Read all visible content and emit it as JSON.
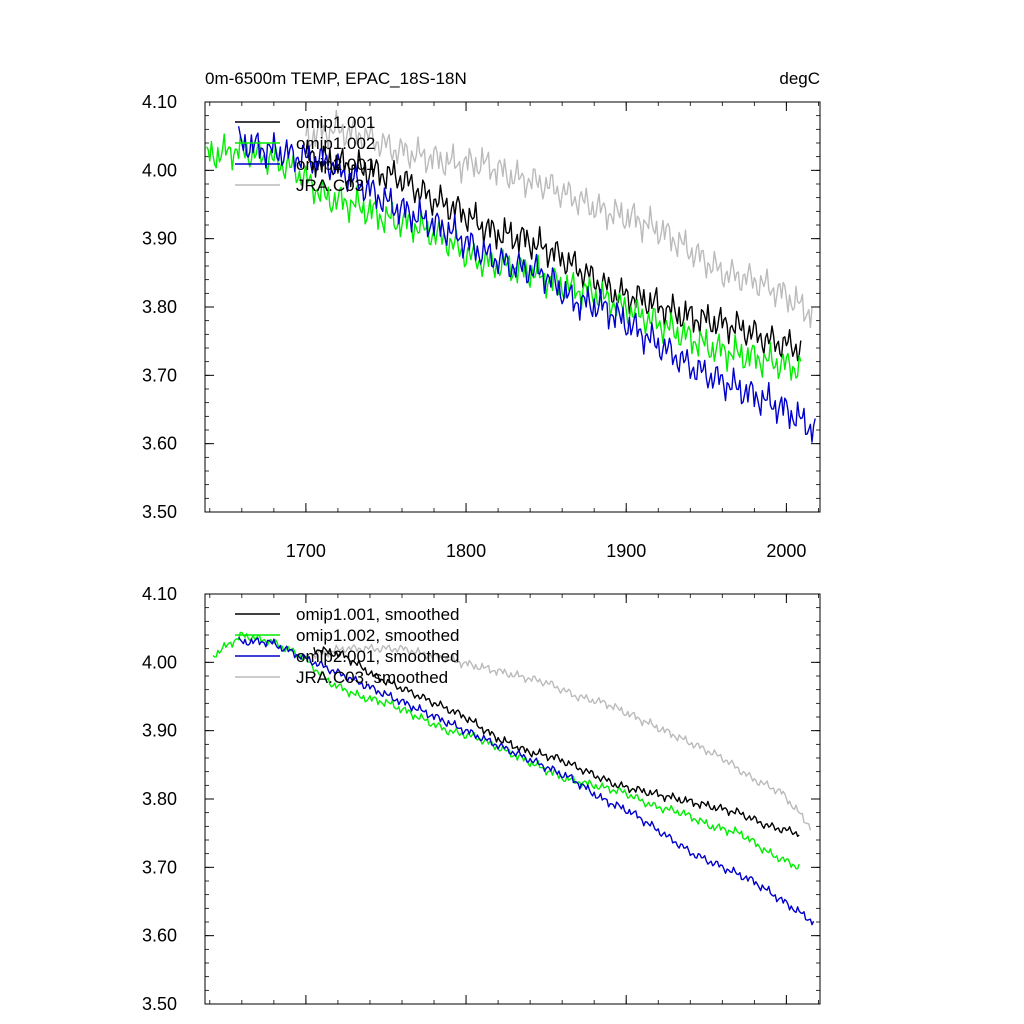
{
  "chart_data": [
    {
      "type": "line",
      "title_left": "0m-6500m TEMP, EPAC_18S-18N",
      "title_right": "degC",
      "xlim": [
        1637,
        2021
      ],
      "ylim": [
        3.5,
        4.1
      ],
      "x_ticks": [
        1700,
        1800,
        1900,
        2000
      ],
      "x_tick_labels": [
        "1700",
        "1800",
        "1900",
        "2000"
      ],
      "y_ticks": [
        3.5,
        3.6,
        3.7,
        3.8,
        3.9,
        4.0,
        4.1
      ],
      "y_tick_labels": [
        "3.50",
        "3.60",
        "3.70",
        "3.80",
        "3.90",
        "4.00",
        "4.10"
      ],
      "legend_position": "top-left",
      "series": [
        {
          "name": "omip1.001",
          "color": "#000000",
          "x_start": 1700,
          "x_end": 2009,
          "values": [
            4.02,
            4.01,
            4.0,
            3.99,
            3.96,
            3.94,
            3.91,
            3.9,
            3.88,
            3.85,
            3.82,
            3.81,
            3.79,
            3.78,
            3.77,
            3.75,
            3.74
          ]
        },
        {
          "name": "omip1.002",
          "color": "#00ee00",
          "x_start": 1638,
          "x_end": 2009,
          "values": [
            4.02,
            4.03,
            4.02,
            4.0,
            3.96,
            3.95,
            3.93,
            3.92,
            3.9,
            3.87,
            3.86,
            3.85,
            3.83,
            3.82,
            3.8,
            3.78,
            3.76,
            3.74,
            3.73,
            3.72,
            3.71
          ]
        },
        {
          "name": "omip2.001",
          "color": "#0000cc",
          "x_start": 1658,
          "x_end": 2018,
          "values": [
            4.04,
            4.03,
            4.02,
            4.01,
            3.98,
            3.95,
            3.93,
            3.91,
            3.88,
            3.86,
            3.85,
            3.81,
            3.8,
            3.77,
            3.74,
            3.71,
            3.69,
            3.67,
            3.65,
            3.62
          ]
        },
        {
          "name": "JRA.C03",
          "color": "#bbbbbb",
          "x_start": 1700,
          "x_end": 2016,
          "values": [
            4.05,
            4.06,
            4.05,
            4.03,
            4.02,
            4.01,
            4.01,
            3.99,
            3.98,
            3.96,
            3.94,
            3.93,
            3.91,
            3.88,
            3.85,
            3.84,
            3.82,
            3.79
          ]
        }
      ]
    },
    {
      "type": "line",
      "xlim": [
        1637,
        2021
      ],
      "ylim": [
        3.5,
        4.1
      ],
      "x_ticks": [
        1700,
        1800,
        1900,
        2000
      ],
      "y_ticks": [
        3.5,
        3.6,
        3.7,
        3.8,
        3.9,
        4.0,
        4.1
      ],
      "y_tick_labels": [
        "3.50",
        "3.60",
        "3.70",
        "3.80",
        "3.90",
        "4.00",
        "4.10"
      ],
      "legend_position": "top-left",
      "series": [
        {
          "name": "omip1.001, smoothed",
          "color": "#000000",
          "x_start": 1705,
          "x_end": 2008,
          "values": [
            4.02,
            4.01,
            3.98,
            3.96,
            3.94,
            3.92,
            3.89,
            3.87,
            3.86,
            3.84,
            3.82,
            3.81,
            3.8,
            3.79,
            3.78,
            3.76,
            3.75
          ]
        },
        {
          "name": "omip1.002, smoothed",
          "color": "#00ee00",
          "x_start": 1642,
          "x_end": 2008,
          "values": [
            4.01,
            4.04,
            4.03,
            4.01,
            3.97,
            3.95,
            3.94,
            3.92,
            3.9,
            3.89,
            3.87,
            3.85,
            3.83,
            3.82,
            3.81,
            3.79,
            3.78,
            3.76,
            3.75,
            3.72,
            3.7
          ]
        },
        {
          "name": "omip2.001, smoothed",
          "color": "#0000cc",
          "x_start": 1658,
          "x_end": 2017,
          "values": [
            4.03,
            4.03,
            4.01,
            3.99,
            3.97,
            3.95,
            3.93,
            3.91,
            3.89,
            3.87,
            3.85,
            3.83,
            3.8,
            3.78,
            3.75,
            3.72,
            3.7,
            3.68,
            3.65,
            3.62
          ]
        },
        {
          "name": "JRA.C03, smoothed",
          "color": "#bbbbbb",
          "x_start": 1705,
          "x_end": 2015,
          "values": [
            4.01,
            4.02,
            4.02,
            4.02,
            4.01,
            4.0,
            3.99,
            3.98,
            3.97,
            3.95,
            3.94,
            3.92,
            3.9,
            3.88,
            3.86,
            3.83,
            3.81,
            3.76
          ]
        }
      ]
    }
  ]
}
